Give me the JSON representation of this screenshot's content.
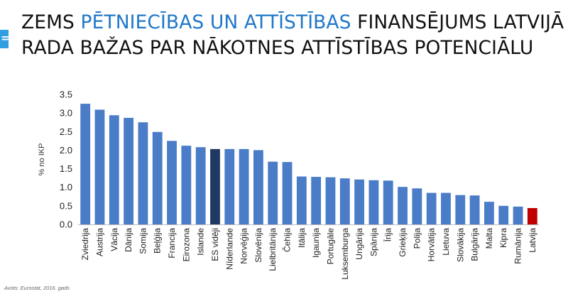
{
  "title": {
    "line1_a": "ZEMS ",
    "line1_highlight": "PĒTNIECĪBAS UN ATTĪSTĪBAS",
    "line1_b": " FINANSĒJUMS LATVIJĀ",
    "line2": "RADA BAŽAS PAR NĀKOTNES ATTĪSTĪBAS POTENCIĀLU"
  },
  "source_note": "Avots: Eurostat, 2016. gads",
  "colors": {
    "bar_default": "#4a7cc7",
    "bar_eu_average": "#1f3864",
    "bar_latvia": "#c00000",
    "title_highlight": "#1f77c9",
    "accent": "#2f9fe0"
  },
  "chart_data": {
    "type": "bar",
    "ylabel": "% no IKP",
    "ylim": [
      0,
      3.5
    ],
    "yticks": [
      "0.0",
      "0.5",
      "1.0",
      "1.5",
      "2.0",
      "2.5",
      "3.0",
      "3.5"
    ],
    "grid": false,
    "legend": "none",
    "categories": [
      "Zviedrija",
      "Austrija",
      "Vācija",
      "Dānija",
      "Somija",
      "Beļģija",
      "Francija",
      "Eirozona",
      "Islande",
      "ES vidēji",
      "Nīderlande",
      "Norvēģija",
      "Slovēnija",
      "Lielbritānija",
      "Čehija",
      "Itālija",
      "Igaunija",
      "Portugāle",
      "Luksemburga",
      "Ungārija",
      "Spānija",
      "Īrija",
      "Grieķija",
      "Polija",
      "Horvātija",
      "Lietuva",
      "Slovākija",
      "Bulgārija",
      "Malta",
      "Kipra",
      "Rumānija",
      "Latvija"
    ],
    "values": [
      3.25,
      3.09,
      2.94,
      2.87,
      2.75,
      2.49,
      2.25,
      2.12,
      2.08,
      2.03,
      2.03,
      2.03,
      2.0,
      1.69,
      1.68,
      1.29,
      1.28,
      1.27,
      1.24,
      1.21,
      1.19,
      1.18,
      1.01,
      0.97,
      0.85,
      0.85,
      0.79,
      0.78,
      0.61,
      0.5,
      0.48,
      0.44
    ],
    "highlight": {
      "ES vidēji": "bar_eu_average",
      "Latvija": "bar_latvia"
    }
  }
}
